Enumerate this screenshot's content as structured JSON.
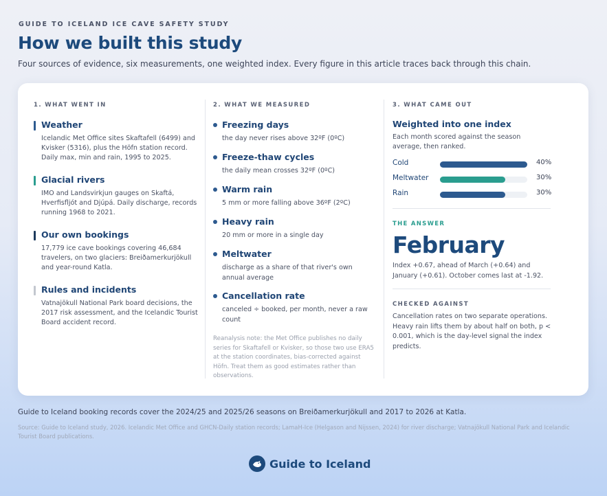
{
  "header": {
    "kicker": "GUIDE TO ICELAND ICE CAVE SAFETY STUDY",
    "title": "How we built this study",
    "subtitle": "Four sources of evidence, six measurements, one weighted index. Every figure in this article traces back through this chain."
  },
  "columns": {
    "went_in": {
      "heading": "1.  WHAT WENT IN",
      "sources": [
        {
          "title": "Weather",
          "color": "#2d5a8f",
          "text": "Icelandic Met Office sites Skaftafell (6499) and Kvisker (5316), plus the Höfn station record. Daily max, min and rain, 1995 to 2025."
        },
        {
          "title": "Glacial rivers",
          "color": "#2a9d8f",
          "text": "IMO and Landsvirkjun gauges on Skaftá, Hverfisfljót and Djúpá. Daily discharge, records running 1968 to 2021."
        },
        {
          "title": "Our own bookings",
          "color": "#1d3a5c",
          "text": "17,779 ice cave bookings covering 46,684 travelers, on two glaciers: Breiðamerkurjökull and year-round Katla."
        },
        {
          "title": "Rules and incidents",
          "color": "#c3c7cf",
          "text": "Vatnajökull National Park board decisions, the 2017 risk assessment, and the Icelandic Tourist Board accident record."
        }
      ]
    },
    "measured": {
      "heading": "2.  WHAT WE MEASURED",
      "items": [
        {
          "title": "Freezing days",
          "text": "the day never rises above 32ºF (0ºC)"
        },
        {
          "title": "Freeze-thaw cycles",
          "text": "the daily mean crosses 32ºF (0ºC)"
        },
        {
          "title": "Warm rain",
          "text": "5 mm or more falling above 36ºF (2ºC)"
        },
        {
          "title": "Heavy rain",
          "text": "20 mm or more in a single day"
        },
        {
          "title": "Meltwater",
          "text": "discharge as a share of that river's own annual average"
        },
        {
          "title": "Cancellation rate",
          "text": "canceled ÷ booked, per month, never a raw count"
        }
      ],
      "note": "Reanalysis note: the Met Office publishes no daily series for Skaftafell or Kvisker, so those two use ERA5 at the station coordinates, bias-corrected against Höfn. Treat them as good estimates rather than observations."
    },
    "came_out": {
      "heading": "3.  WHAT CAME OUT",
      "index_title": "Weighted into one index",
      "index_text": "Each month scored against the season average, then ranked.",
      "weights": [
        {
          "label": "Cold",
          "value": 40,
          "display": "40%",
          "color": "#2d5a8f"
        },
        {
          "label": "Meltwater",
          "value": 30,
          "display": "30%",
          "color": "#2a9d8f"
        },
        {
          "label": "Rain",
          "value": 30,
          "display": "30%",
          "color": "#2d5a8f"
        }
      ],
      "answer_kicker": "THE ANSWER",
      "answer": "February",
      "answer_text": "Index +0.67, ahead of March (+0.64) and January (+0.61). October comes last at -1.92.",
      "checked_kicker": "CHECKED AGAINST",
      "checked_text": "Cancellation rates on two separate operations. Heavy rain lifts them by about half on both, p < 0.001, which is the day-level signal the index predicts."
    }
  },
  "footer": {
    "coverage": "Guide to Iceland booking records cover the 2024/25 and 2025/26 seasons on Breiðamerkurjökull and 2017 to 2026 at Katla.",
    "source": "Source: Guide to Iceland study, 2026. Icelandic Met Office and GHCN-Daily station records; LamaH-Ice (Helgason and Nijssen, 2024) for river discharge; Vatnajökull National Park and Icelandic Tourist Board publications.",
    "brand": "Guide to Iceland"
  }
}
